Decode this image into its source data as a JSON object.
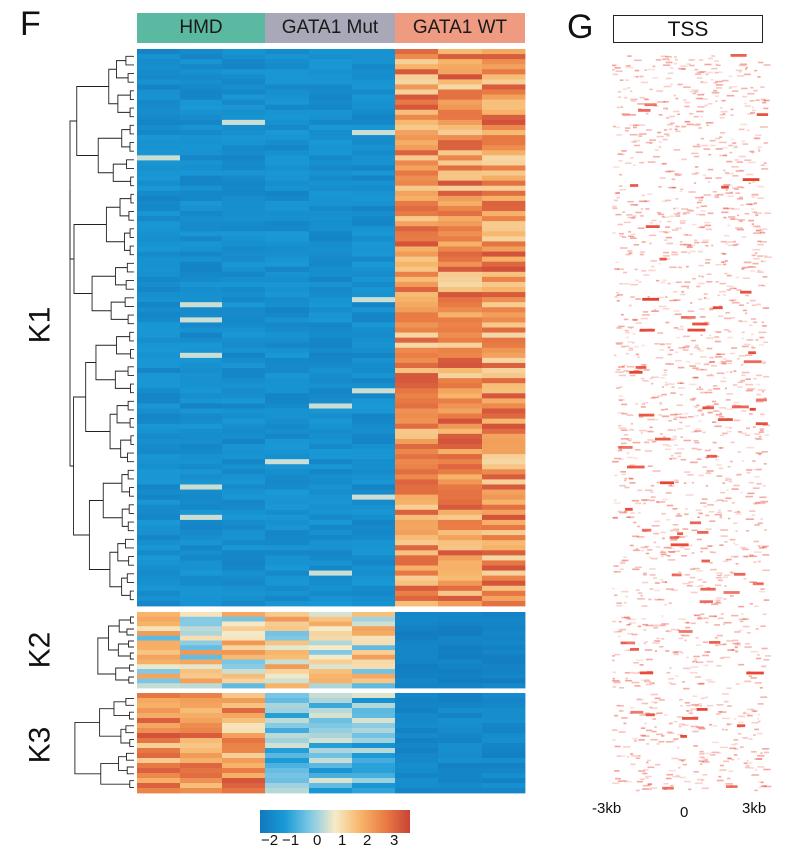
{
  "panels": {
    "heatmap_letter": "F",
    "tss_letter": "G"
  },
  "heatmap": {
    "column_groups": [
      {
        "label": "HMD",
        "color": "#5bb8a1"
      },
      {
        "label": "GATA1 Mut",
        "color": "#a9a8b8"
      },
      {
        "label": "GATA1 WT",
        "color": "#ee9b82"
      }
    ],
    "clusters": [
      {
        "label": "K1",
        "pattern": "low-low-high"
      },
      {
        "label": "K2",
        "pattern": "mid-mid-low"
      },
      {
        "label": "K3",
        "pattern": "high-mixed-low"
      }
    ],
    "colorbar": {
      "ticks": [
        "−2",
        "−1",
        "0",
        "1",
        "2",
        "3"
      ],
      "min": -2,
      "max": 3,
      "colors": [
        "#1178bd",
        "#1a9ad6",
        "#7fc8e6",
        "#f6ebc8",
        "#f7b66b",
        "#ea7d45",
        "#c94237"
      ]
    }
  },
  "tss": {
    "title": "TSS",
    "x_ticks": [
      "-3kb",
      "0",
      "3kb"
    ],
    "color": "#e8402e"
  }
}
